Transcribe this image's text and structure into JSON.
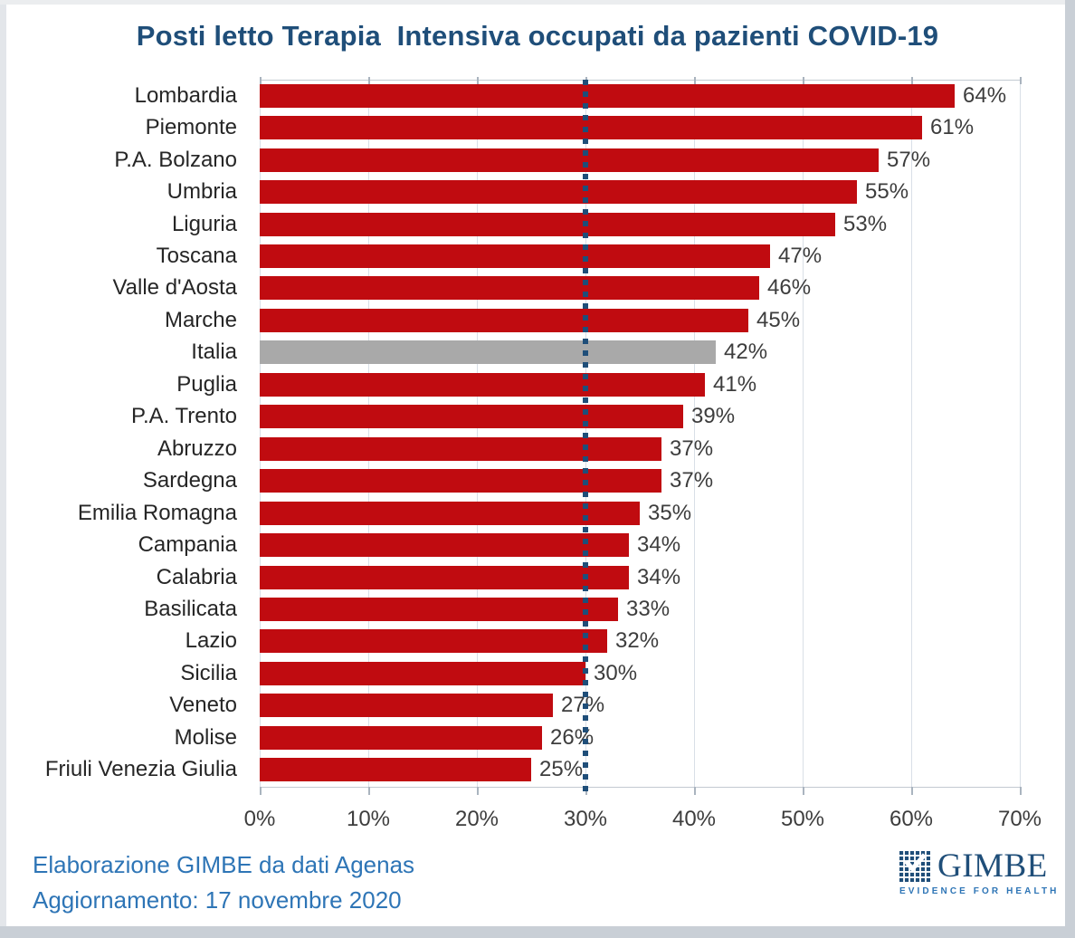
{
  "colors": {
    "bar": "#C00B10",
    "highlight_bar": "#A9A9A9",
    "title": "#1F4E79",
    "threshold_line": "#1F4E79",
    "footer_text": "#2E75B6",
    "axis_text": "#3D3D3D",
    "category_text": "#262626",
    "gridline": "#D9DFE7",
    "plot_border": "#C3CAD1",
    "logo_navy": "#1F4E79",
    "logo_blue": "#2E75B6",
    "frame": "#C9CFD6",
    "frame_light": "#E3E6EA"
  },
  "chart_data": {
    "type": "bar",
    "orientation": "horizontal",
    "title": "Posti letto Terapia  Intensiva occupati da pazienti COVID-19",
    "categories": [
      "Lombardia",
      "Piemonte",
      "P.A. Bolzano",
      "Umbria",
      "Liguria",
      "Toscana",
      "Valle d'Aosta",
      "Marche",
      "Italia",
      "Puglia",
      "P.A. Trento",
      "Abruzzo",
      "Sardegna",
      "Emilia Romagna",
      "Campania",
      "Calabria",
      "Basilicata",
      "Lazio",
      "Sicilia",
      "Veneto",
      "Molise",
      "Friuli Venezia Giulia"
    ],
    "values": [
      64,
      61,
      57,
      55,
      53,
      47,
      46,
      45,
      42,
      41,
      39,
      37,
      37,
      35,
      34,
      34,
      33,
      32,
      30,
      27,
      26,
      25
    ],
    "value_suffix": "%",
    "highlight_category": "Italia",
    "xlim": [
      0,
      70
    ],
    "x_ticks": [
      "0%",
      "10%",
      "20%",
      "30%",
      "40%",
      "50%",
      "60%",
      "70%"
    ],
    "x_tick_values": [
      0,
      10,
      20,
      30,
      40,
      50,
      60,
      70
    ],
    "threshold_x": 30,
    "grid": true,
    "legend": false
  },
  "footer": {
    "line1": "Elaborazione GIMBE da dati Agenas",
    "line2": "Aggiornamento: 17 novembre 2020"
  },
  "logo": {
    "name": "GIMBE",
    "tagline": "EVIDENCE FOR HEALTH"
  }
}
